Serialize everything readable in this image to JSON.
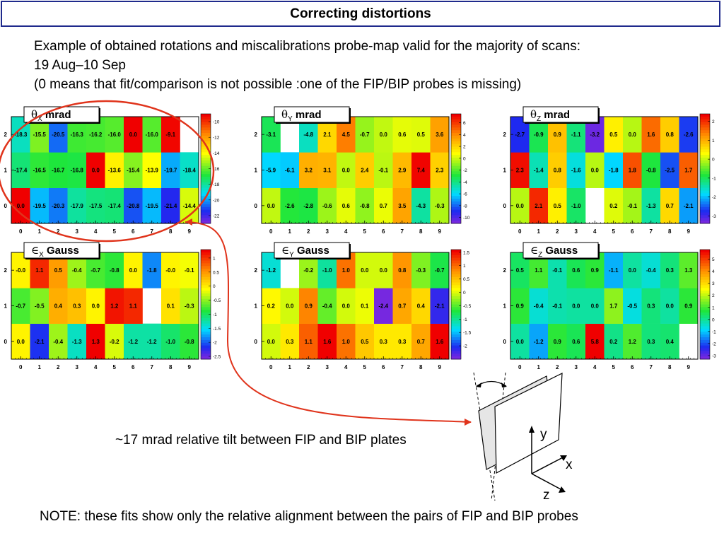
{
  "slide": {
    "title": "Correcting distortions",
    "intro_line1": "Example of obtained rotations and miscalibrations probe-map valid for the majority of scans:",
    "intro_line2": "19 Aug–10 Sep",
    "intro_line3": "(0 means that fit/comparison is not possible :one of the FIP/BIP probes is missing)",
    "tilt_note": "~17 mrad relative tilt between FIP and BIP plates",
    "bottom_note": "NOTE: these fits show only the relative alignment between the pairs of FIP and BIP probes",
    "axis_labels": {
      "x": "x",
      "y": "y",
      "z": "z"
    },
    "colors": {
      "title_border": "#1f2a8c",
      "highlight": "#e0341c",
      "text": "#000000"
    }
  },
  "chart_data": [
    {
      "type": "heatmap",
      "title_symbol": "θ",
      "title_sub": "X",
      "title_unit": "mrad",
      "x": [
        "0",
        "1",
        "2",
        "3",
        "4",
        "5",
        "6",
        "7",
        "8",
        "9"
      ],
      "y": [
        "0",
        "1",
        "2"
      ],
      "values": [
        [
          "0.0",
          "-19.5",
          "-20.3",
          "-17.9",
          "-17.5",
          "-17.4",
          "-20.8",
          "-19.5",
          "-21.4",
          "-14.4"
        ],
        [
          "-17.4",
          "-16.5",
          "-16.7",
          "-16.8",
          "0.0",
          "-13.6",
          "-15.4",
          "-13.9",
          "-19.7",
          "-18.4"
        ],
        [
          "-18.3",
          "-15.5",
          "-20.5",
          "-16.3",
          "-16.2",
          "-16.0",
          "0.0",
          "-16.0",
          "-9.1",
          ""
        ]
      ],
      "zlim": [
        -23,
        -9
      ],
      "scale_ticks": [
        "-10",
        "-12",
        "-14",
        "-16",
        "-18",
        "-20",
        "-22"
      ],
      "scale_tick_values": [
        -10,
        -12,
        -14,
        -16,
        -18,
        -20,
        -22
      ]
    },
    {
      "type": "heatmap",
      "title_symbol": "θ",
      "title_sub": "Y",
      "title_unit": "mrad",
      "x": [
        "0",
        "1",
        "2",
        "3",
        "4",
        "5",
        "6",
        "7",
        "8",
        "9"
      ],
      "y": [
        "0",
        "1",
        "2"
      ],
      "values": [
        [
          "0.0",
          "-2.6",
          "-2.8",
          "-0.6",
          "0.6",
          "-0.8",
          "0.7",
          "3.5",
          "-4.3",
          "-0.3"
        ],
        [
          "-5.9",
          "-6.1",
          "3.2",
          "3.1",
          "0.0",
          "2.4",
          "-0.1",
          "2.9",
          "7.4",
          "2.3"
        ],
        [
          "-3.1",
          "",
          "-4.8",
          "2.1",
          "4.5",
          "-0.7",
          "0.0",
          "0.6",
          "0.5",
          "3.6"
        ]
      ],
      "zlim": [
        -11,
        7.5
      ],
      "scale_ticks": [
        "6",
        "4",
        "2",
        "0",
        "-2",
        "-4",
        "-6",
        "-8",
        "-10"
      ],
      "scale_tick_values": [
        6,
        4,
        2,
        0,
        -2,
        -4,
        -6,
        -8,
        -10
      ]
    },
    {
      "type": "heatmap",
      "title_symbol": "θ",
      "title_sub": "Z",
      "title_unit": "mrad",
      "x": [
        "0",
        "1",
        "2",
        "3",
        "4",
        "5",
        "6",
        "7",
        "8",
        "9"
      ],
      "y": [
        "0",
        "1",
        "2"
      ],
      "values": [
        [
          "0.0",
          "2.1",
          "0.5",
          "-1.0",
          "",
          "0.2",
          "-0.1",
          "-1.3",
          "0.7",
          "-2.1"
        ],
        [
          "2.3",
          "-1.4",
          "0.8",
          "-1.6",
          "0.0",
          "-1.8",
          "1.8",
          "-0.8",
          "-2.5",
          "1.7"
        ],
        [
          "-2.7",
          "-0.9",
          "0.9",
          "-1.1",
          "-3.2",
          "0.5",
          "0.0",
          "1.6",
          "0.8",
          "-2.6"
        ]
      ],
      "zlim": [
        -3.4,
        2.4
      ],
      "scale_ticks": [
        "2",
        "1",
        "0",
        "-1",
        "-2",
        "-3"
      ],
      "scale_tick_values": [
        2,
        1,
        0,
        -1,
        -2,
        -3
      ]
    },
    {
      "type": "heatmap",
      "title_symbol": "∈",
      "title_sub": "X",
      "title_unit": "Gauss",
      "x": [
        "0",
        "1",
        "2",
        "3",
        "4",
        "5",
        "6",
        "7",
        "8",
        "9"
      ],
      "y": [
        "0",
        "1",
        "2"
      ],
      "values": [
        [
          "0.0",
          "-2.1",
          "-0.4",
          "-1.3",
          "1.3",
          "-0.2",
          "-1.2",
          "-1.2",
          "-1.0",
          "-0.8"
        ],
        [
          "-0.7",
          "-0.5",
          "0.4",
          "0.3",
          "0.0",
          "1.2",
          "1.1",
          "",
          "0.1",
          "-0.3"
        ],
        [
          "-0.0",
          "1.1",
          "0.5",
          "-0.4",
          "-0.7",
          "-0.8",
          "0.0",
          "-1.8",
          "-0.0",
          "-0.1"
        ]
      ],
      "zlim": [
        -2.6,
        1.3
      ],
      "scale_ticks": [
        "1",
        "0.5",
        "0",
        "-0.5",
        "-1",
        "-1.5",
        "-2",
        "-2.5"
      ],
      "scale_tick_values": [
        1,
        0.5,
        0,
        -0.5,
        -1,
        -1.5,
        -2,
        -2.5
      ]
    },
    {
      "type": "heatmap",
      "title_symbol": "∈",
      "title_sub": "Y",
      "title_unit": "Gauss",
      "x": [
        "0",
        "1",
        "2",
        "3",
        "4",
        "5",
        "6",
        "7",
        "8",
        "9"
      ],
      "y": [
        "0",
        "1",
        "2"
      ],
      "values": [
        [
          "0.0",
          "0.3",
          "1.1",
          "1.6",
          "1.0",
          "0.5",
          "0.3",
          "0.3",
          "0.7",
          "1.6"
        ],
        [
          "0.2",
          "0.0",
          "0.9",
          "-0.4",
          "0.0",
          "0.1",
          "-2.4",
          "0.7",
          "0.4",
          "-2.1"
        ],
        [
          "-1.2",
          "",
          "-0.2",
          "-1.0",
          "1.0",
          "0.0",
          "0.0",
          "0.8",
          "-0.3",
          "-0.7"
        ]
      ],
      "zlim": [
        -2.5,
        1.6
      ],
      "scale_ticks": [
        "1.5",
        "1",
        "0.5",
        "0",
        "-0.5",
        "-1",
        "-1.5",
        "-2"
      ],
      "scale_tick_values": [
        1.5,
        1,
        0.5,
        0,
        -0.5,
        -1,
        -1.5,
        -2
      ]
    },
    {
      "type": "heatmap",
      "title_symbol": "∈",
      "title_sub": "Z",
      "title_unit": "Gauss",
      "x": [
        "0",
        "1",
        "2",
        "3",
        "4",
        "5",
        "6",
        "7",
        "8",
        "9"
      ],
      "y": [
        "0",
        "1",
        "2"
      ],
      "values": [
        [
          "0.0",
          "-1.2",
          "0.9",
          "0.6",
          "5.8",
          "0.2",
          "1.2",
          "0.3",
          "0.4",
          ""
        ],
        [
          "0.9",
          "-0.4",
          "-0.1",
          "0.0",
          "0.0",
          "1.7",
          "-0.5",
          "0.3",
          "0.0",
          "0.9"
        ],
        [
          "0.5",
          "1.1",
          "-0.1",
          "0.6",
          "0.9",
          "-1.1",
          "0.0",
          "-0.4",
          "0.3",
          "1.3"
        ]
      ],
      "zlim": [
        -3.3,
        5.8
      ],
      "scale_ticks": [
        "5",
        "4",
        "3",
        "2",
        "1",
        "0",
        "-1",
        "-2",
        "-3"
      ],
      "scale_tick_values": [
        5,
        4,
        3,
        2,
        1,
        0,
        -1,
        -2,
        -3
      ]
    }
  ]
}
